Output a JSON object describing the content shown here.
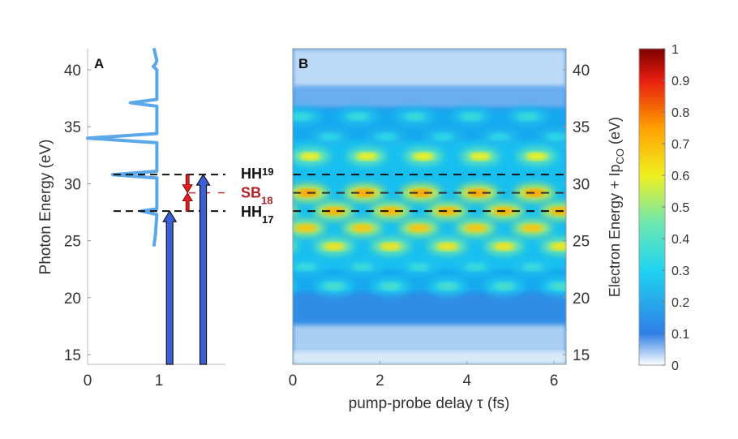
{
  "chart_data": [
    {
      "type": "line",
      "panel_label": "A",
      "ylabel": "Photon Energy (eV)",
      "xlabel": "",
      "xlim": [
        0,
        1.9
      ],
      "ylim": [
        14.2,
        41.9
      ],
      "xticks": [
        "0",
        "1"
      ],
      "yticks": [
        "15",
        "20",
        "25",
        "30",
        "35",
        "40"
      ],
      "spectrum": {
        "intensity": [
          0.93,
          0.97,
          0.95,
          0.92,
          0.97,
          0.97,
          0.97,
          0.6,
          0.97,
          0.97,
          0.97,
          0.0,
          0.97,
          0.97,
          0.97,
          0.35,
          0.97,
          0.97,
          0.97,
          0.75,
          0.97,
          0.95,
          0.93
        ],
        "energy": [
          41.9,
          40.8,
          40.5,
          40.3,
          40.0,
          37.8,
          37.4,
          37.1,
          36.8,
          34.8,
          34.4,
          34.0,
          33.6,
          31.4,
          31.1,
          30.8,
          30.5,
          28.0,
          27.8,
          27.6,
          27.3,
          25.5,
          24.5
        ]
      },
      "levels": [
        {
          "label": "HH",
          "sub": "19",
          "energy": 30.8,
          "color": "#111111"
        },
        {
          "label": "SB",
          "sub": "18",
          "energy": 29.2,
          "color": "#b22222"
        },
        {
          "label": "HH",
          "sub": "17",
          "energy": 27.6,
          "color": "#111111"
        }
      ],
      "arrows": [
        {
          "x": 1.15,
          "to": 27.6,
          "color": "#3b5fd9"
        },
        {
          "x": 1.62,
          "to": 30.8,
          "color": "#3b5fd9"
        }
      ],
      "sideband_arrow": {
        "x": 1.4,
        "from_top": 30.8,
        "from_bottom": 27.6,
        "meet": 29.2,
        "color": "#e02020"
      }
    },
    {
      "type": "heatmap",
      "panel_label": "B",
      "xlabel": "pump-probe delay τ (fs)",
      "ylabel": "Electron Energy + Ip",
      "ylabel_sub": "CO",
      "ylabel_unit": "(eV)",
      "xlim": [
        0,
        6.28
      ],
      "ylim": [
        14.2,
        41.9
      ],
      "xticks": [
        "0",
        "2",
        "4",
        "6"
      ],
      "yticks": [
        "15",
        "20",
        "25",
        "30",
        "35",
        "40"
      ],
      "period_fs": 1.3,
      "peak_rows": [
        {
          "energy": 35.9,
          "intensity": 0.35,
          "phase": 0.2
        },
        {
          "energy": 34.1,
          "intensity": 0.32,
          "phase": 0.85
        },
        {
          "energy": 32.4,
          "intensity": 0.6,
          "phase": 0.4
        },
        {
          "energy": 29.2,
          "intensity": 0.75,
          "phase": 0.35
        },
        {
          "energy": 27.6,
          "intensity": 0.72,
          "phase": 0.95
        },
        {
          "energy": 26.1,
          "intensity": 0.68,
          "phase": 0.3
        },
        {
          "energy": 24.5,
          "intensity": 0.62,
          "phase": 0.95
        },
        {
          "energy": 22.7,
          "intensity": 0.35,
          "phase": 0.3
        },
        {
          "energy": 21.0,
          "intensity": 0.38,
          "phase": 0.95
        }
      ],
      "colorbar": {
        "min": 0,
        "max": 1,
        "ticks": [
          "0",
          "0.1",
          "0.2",
          "0.3",
          "0.4",
          "0.5",
          "0.6",
          "0.7",
          "0.8",
          "0.9",
          "1"
        ]
      }
    }
  ]
}
